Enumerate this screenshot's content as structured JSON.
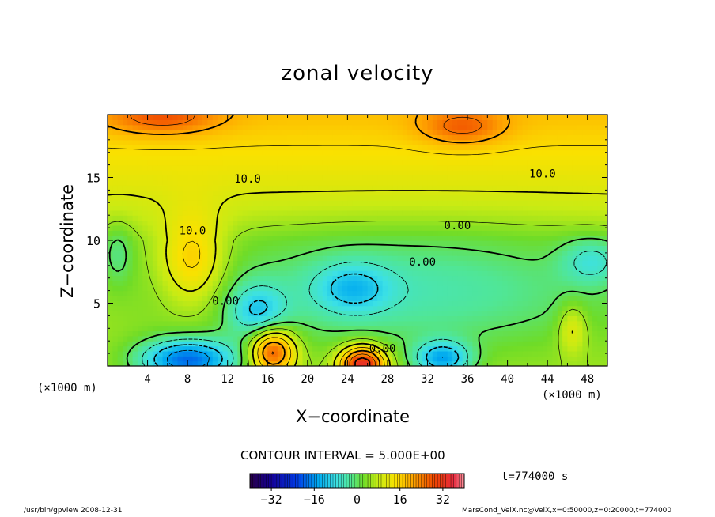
{
  "chart_data": {
    "type": "heatmap",
    "title": "zonal velocity",
    "xlabel": "X−coordinate",
    "ylabel": "Z−coordinate",
    "x_unit_left": "(×1000 m)",
    "x_unit_right": "(×1000 m)",
    "xlim": [
      0,
      50
    ],
    "ylim": [
      0,
      20
    ],
    "x_ticks": [
      4,
      8,
      12,
      16,
      20,
      24,
      28,
      32,
      36,
      40,
      44,
      48
    ],
    "y_ticks": [
      5,
      10,
      15
    ],
    "contour_labels": [
      {
        "text": "10.0",
        "x": 14,
        "z": 14.9
      },
      {
        "text": "10.0",
        "x": 43.5,
        "z": 15.3
      },
      {
        "text": "10.0",
        "x": 8.5,
        "z": 10.8
      },
      {
        "text": "0.00",
        "x": 35,
        "z": 11.2
      },
      {
        "text": "0.00",
        "x": 31.5,
        "z": 8.3
      },
      {
        "text": "0.00",
        "x": 11.8,
        "z": 5.2
      },
      {
        "text": "0.00",
        "x": 27.5,
        "z": 1.4
      }
    ],
    "contour_interval_text": "CONTOUR INTERVAL = 5.000E+00",
    "colorbar": {
      "min": -40,
      "max": 40,
      "tick_labels": [
        "−32",
        "−16",
        "0",
        "16",
        "32"
      ],
      "tick_values": [
        -32,
        -16,
        0,
        16,
        32
      ]
    },
    "time_text": "t=774000 s",
    "field_features": [
      {
        "x": 5.5,
        "z": 19.5,
        "value": 22
      },
      {
        "x": 35.5,
        "z": 18.7,
        "value": 22
      },
      {
        "x": 13,
        "z": 19.8,
        "value": 20
      },
      {
        "x": 28,
        "z": 19.8,
        "value": 18
      },
      {
        "x": 8.5,
        "z": 8.5,
        "value": 19
      },
      {
        "x": 6,
        "z": 1,
        "value": -22
      },
      {
        "x": 10,
        "z": 0.6,
        "value": -26
      },
      {
        "x": 15,
        "z": 4.5,
        "value": -12
      },
      {
        "x": 24.5,
        "z": 6.2,
        "value": -11
      },
      {
        "x": 17.5,
        "z": 8.7,
        "value": -6
      },
      {
        "x": 48.5,
        "z": 8.4,
        "value": -10
      },
      {
        "x": 39.5,
        "z": 6.5,
        "value": -6
      },
      {
        "x": 33.5,
        "z": 0.8,
        "value": -16
      },
      {
        "x": 47,
        "z": 1.2,
        "value": -10
      },
      {
        "x": 16.5,
        "z": 1.3,
        "value": 26
      },
      {
        "x": 25.5,
        "z": 0.3,
        "value": 34
      },
      {
        "x": 46.5,
        "z": 3,
        "value": 16
      },
      {
        "x": 1,
        "z": 9,
        "value": -4
      },
      {
        "x": 8,
        "z": 15,
        "value": 8
      },
      {
        "x": 30,
        "z": 12.5,
        "value": 6
      },
      {
        "x": 45,
        "z": 11.5,
        "value": 2
      }
    ]
  },
  "footer": {
    "left": "/usr/bin/gpview   2008-12-31",
    "right": "MarsCond_VelX.nc@VelX,x=0:50000,z=0:20000,t=774000"
  }
}
